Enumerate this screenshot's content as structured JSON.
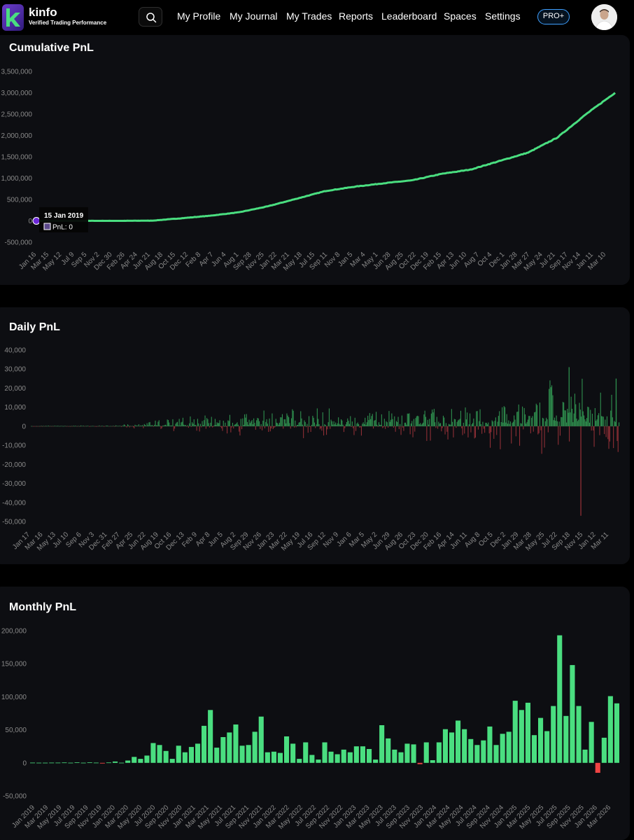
{
  "brand": {
    "name": "kinfo",
    "tagline": "Verified Trading Performance"
  },
  "nav": {
    "items": [
      "My Profile",
      "My Journal",
      "My Trades",
      "Reports",
      "Leaderboard",
      "Spaces",
      "Settings"
    ],
    "pro_label": "PRO+"
  },
  "colors": {
    "background": "#000000",
    "card": "#0d0e12",
    "positive": "#4ade80",
    "negative": "#ef4444",
    "tooltip_marker": "#6d28d9",
    "pro_border": "#3fa0ff"
  },
  "icons": {
    "search": "search-icon",
    "logo": "kinfo-logo-icon",
    "avatar": "user-avatar"
  },
  "cumulative": {
    "title": "Cumulative PnL",
    "tooltip": {
      "date": "15 Jan 2019",
      "label": "PnL: 0"
    }
  },
  "daily": {
    "title": "Daily PnL"
  },
  "monthly": {
    "title": "Monthly PnL"
  },
  "chart_data": [
    {
      "type": "line",
      "title": "Cumulative PnL",
      "yticks": [
        "3,500,000",
        "3,000,000",
        "2,500,000",
        "2,000,000",
        "1,500,000",
        "1,000,000",
        "500,000",
        "0",
        "-500,000"
      ],
      "ylim": [
        -500000,
        3500000
      ],
      "xticks": [
        "Jan 16",
        "Mar 15",
        "May 12",
        "Jul 9",
        "Sep 5",
        "Nov 2",
        "Dec 30",
        "Feb 26",
        "Apr 24",
        "Jun 21",
        "Aug 18",
        "Oct 15",
        "Dec 12",
        "Feb 8",
        "Apr 7",
        "Jun 4",
        "Aug 1",
        "Sep 28",
        "Nov 25",
        "Jan 22",
        "Mar 21",
        "May 18",
        "Jul 15",
        "Sep 11",
        "Nov 8",
        "Jan 5",
        "Mar 4",
        "May 1",
        "Jun 28",
        "Aug 25",
        "Oct 22",
        "Dec 19",
        "Feb 15",
        "Apr 13",
        "Jun 10",
        "Aug 7",
        "Oct 4",
        "Dec 1",
        "Jan 28",
        "Mar 27",
        "May 24",
        "Jul 21",
        "Sep 17",
        "Nov 14",
        "Jan 11",
        "Mar 10"
      ],
      "x_fraction": [
        0,
        0.05,
        0.1,
        0.15,
        0.2,
        0.25,
        0.3,
        0.35,
        0.4,
        0.45,
        0.5,
        0.55,
        0.6,
        0.65,
        0.7,
        0.75,
        0.8,
        0.85,
        0.9,
        0.95,
        1.0
      ],
      "values": [
        0,
        0,
        0,
        0,
        5000,
        60000,
        120000,
        200000,
        340000,
        520000,
        700000,
        800000,
        880000,
        950000,
        1100000,
        1200000,
        1400000,
        1600000,
        1950000,
        2500000,
        3000000
      ],
      "grid": false,
      "legend": "none"
    },
    {
      "type": "bar",
      "title": "Daily PnL",
      "yticks": [
        "40,000",
        "30,000",
        "20,000",
        "10,000",
        "0",
        "-10,000",
        "-20,000",
        "-30,000",
        "-40,000",
        "-50,000"
      ],
      "ylim": [
        -50000,
        40000
      ],
      "xticks": [
        "Jan 17",
        "Mar 16",
        "May 13",
        "Jul 10",
        "Sep 6",
        "Nov 3",
        "Dec 31",
        "Feb 27",
        "Apr 25",
        "Jun 22",
        "Aug 19",
        "Oct 16",
        "Dec 13",
        "Feb 9",
        "Apr 8",
        "Jun 5",
        "Aug 2",
        "Sep 29",
        "Nov 26",
        "Jan 23",
        "Mar 22",
        "May 19",
        "Jul 16",
        "Sep 12",
        "Nov 9",
        "Jan 6",
        "Mar 5",
        "May 2",
        "Jun 29",
        "Aug 26",
        "Oct 23",
        "Dec 20",
        "Feb 16",
        "Apr 14",
        "Jun 11",
        "Aug 8",
        "Oct 5",
        "Dec 2",
        "Jan 29",
        "Mar 28",
        "May 25",
        "Jul 22",
        "Sep 18",
        "Nov 15",
        "Jan 12",
        "Mar 11"
      ],
      "envelope_fraction": [
        0,
        0.15,
        0.2,
        0.3,
        0.4,
        0.5,
        0.6,
        0.7,
        0.8,
        0.85,
        0.9,
        0.95,
        1.0
      ],
      "envelope_pos": [
        200,
        500,
        2500,
        5000,
        7000,
        6500,
        6000,
        8000,
        10000,
        14000,
        20000,
        17000,
        15000
      ],
      "envelope_neg": [
        200,
        300,
        1500,
        3000,
        4500,
        4000,
        3500,
        7000,
        12000,
        12000,
        22000,
        20000,
        10000
      ],
      "notable_bars": [
        {
          "x_fraction": 0.915,
          "value": 31000
        },
        {
          "x_fraction": 0.935,
          "value": -47000
        },
        {
          "x_fraction": 0.995,
          "value": 25000
        }
      ],
      "grid": false,
      "legend": "none"
    },
    {
      "type": "bar",
      "title": "Monthly PnL",
      "yticks": [
        "200,000",
        "150,000",
        "100,000",
        "50,000",
        "0",
        "-50,000"
      ],
      "ylim": [
        -50000,
        200000
      ],
      "xticks": [
        "Jan 2019",
        "Mar 2019",
        "May 2019",
        "Jul 2019",
        "Sep 2019",
        "Nov 2019",
        "Jan 2020",
        "Mar 2020",
        "May 2020",
        "Jul 2020",
        "Sep 2020",
        "Nov 2020",
        "Jan 2021",
        "Mar 2021",
        "May 2021",
        "Jul 2021",
        "Sep 2021",
        "Nov 2021",
        "Jan 2022",
        "Mar 2022",
        "May 2022",
        "Jul 2022",
        "Sep 2022",
        "Nov 2022",
        "Jan 2023",
        "Mar 2023",
        "May 2023",
        "Jul 2023",
        "Sep 2023",
        "Nov 2023",
        "Jan 2024",
        "Mar 2024",
        "May 2024",
        "Jul 2024",
        "Sep 2024",
        "Nov 2024",
        "Jan 2025",
        "Mar 2025",
        "May 2025",
        "Jul 2025",
        "Sep 2025",
        "Nov 2025",
        "Jan 2026",
        "Mar 2026"
      ],
      "values": [
        300,
        200,
        200,
        300,
        300,
        500,
        200,
        800,
        200,
        800,
        300,
        -1000,
        500,
        2000,
        200,
        3500,
        9000,
        6000,
        11000,
        30000,
        27000,
        18000,
        6000,
        26000,
        16000,
        24000,
        29000,
        56000,
        80000,
        23000,
        39000,
        46000,
        58000,
        26000,
        27000,
        47000,
        70000,
        16000,
        17000,
        15000,
        40000,
        29000,
        6000,
        31000,
        12000,
        5000,
        31000,
        17000,
        13000,
        20000,
        16000,
        25000,
        25000,
        21000,
        5000,
        57000,
        37000,
        20000,
        16000,
        29000,
        28000,
        -2000,
        31000,
        4000,
        31000,
        51000,
        46000,
        64000,
        51000,
        36000,
        27000,
        34000,
        55000,
        27000,
        44000,
        47000,
        94000,
        80000,
        91000,
        42000,
        68000,
        48000,
        86000,
        193000,
        71000,
        148000,
        86000,
        20000,
        62000,
        -15000,
        38000,
        101000,
        90000
      ],
      "grid": false,
      "legend": "none"
    }
  ]
}
